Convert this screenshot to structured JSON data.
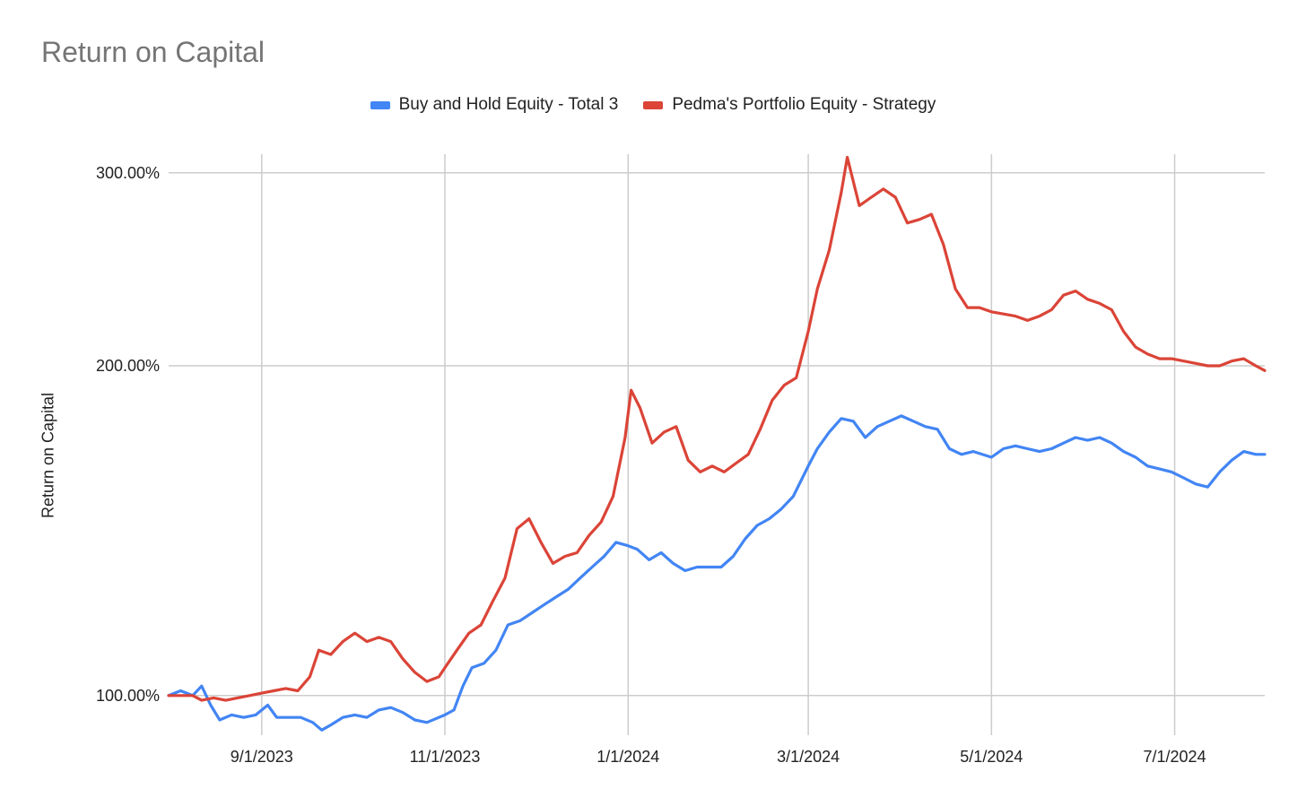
{
  "chart_data": {
    "type": "line",
    "title": "Return on Capital",
    "ylabel": "Return on Capital",
    "xlabel": "",
    "y_scale": "log",
    "ylim": [
      0.92,
      3.12
    ],
    "x_range": [
      "2023-08-01",
      "2024-07-31"
    ],
    "grid": true,
    "legend_position": "top",
    "x_ticks": [
      {
        "date": "2023-09-01",
        "label": "9/1/2023"
      },
      {
        "date": "2023-11-01",
        "label": "11/1/2023"
      },
      {
        "date": "2024-01-01",
        "label": "1/1/2024"
      },
      {
        "date": "2024-03-01",
        "label": "3/1/2024"
      },
      {
        "date": "2024-05-01",
        "label": "5/1/2024"
      },
      {
        "date": "2024-07-01",
        "label": "7/1/2024"
      }
    ],
    "y_ticks": [
      {
        "value": 1.0,
        "label": "100.00%"
      },
      {
        "value": 2.0,
        "label": "200.00%"
      },
      {
        "value": 3.0,
        "label": "300.00%"
      }
    ],
    "series": [
      {
        "name": "Buy and Hold Equity - Total 3",
        "color": "#4285f4",
        "points": [
          [
            "2023-08-01",
            1.0
          ],
          [
            "2023-08-05",
            1.01
          ],
          [
            "2023-08-09",
            1.0
          ],
          [
            "2023-08-12",
            1.02
          ],
          [
            "2023-08-15",
            0.98
          ],
          [
            "2023-08-18",
            0.95
          ],
          [
            "2023-08-22",
            0.96
          ],
          [
            "2023-08-26",
            0.955
          ],
          [
            "2023-08-30",
            0.96
          ],
          [
            "2023-09-03",
            0.98
          ],
          [
            "2023-09-06",
            0.955
          ],
          [
            "2023-09-10",
            0.955
          ],
          [
            "2023-09-14",
            0.955
          ],
          [
            "2023-09-18",
            0.945
          ],
          [
            "2023-09-21",
            0.93
          ],
          [
            "2023-09-24",
            0.94
          ],
          [
            "2023-09-28",
            0.955
          ],
          [
            "2023-10-02",
            0.96
          ],
          [
            "2023-10-06",
            0.955
          ],
          [
            "2023-10-10",
            0.97
          ],
          [
            "2023-10-14",
            0.975
          ],
          [
            "2023-10-18",
            0.965
          ],
          [
            "2023-10-22",
            0.95
          ],
          [
            "2023-10-26",
            0.945
          ],
          [
            "2023-10-30",
            0.955
          ],
          [
            "2023-11-01",
            0.96
          ],
          [
            "2023-11-04",
            0.97
          ],
          [
            "2023-11-07",
            1.02
          ],
          [
            "2023-11-10",
            1.06
          ],
          [
            "2023-11-14",
            1.07
          ],
          [
            "2023-11-18",
            1.1
          ],
          [
            "2023-11-22",
            1.16
          ],
          [
            "2023-11-26",
            1.17
          ],
          [
            "2023-11-30",
            1.19
          ],
          [
            "2023-12-04",
            1.21
          ],
          [
            "2023-12-08",
            1.23
          ],
          [
            "2023-12-12",
            1.25
          ],
          [
            "2023-12-16",
            1.28
          ],
          [
            "2023-12-20",
            1.31
          ],
          [
            "2023-12-24",
            1.34
          ],
          [
            "2023-12-28",
            1.38
          ],
          [
            "2024-01-01",
            1.37
          ],
          [
            "2024-01-04",
            1.36
          ],
          [
            "2024-01-08",
            1.33
          ],
          [
            "2024-01-12",
            1.35
          ],
          [
            "2024-01-16",
            1.32
          ],
          [
            "2024-01-20",
            1.3
          ],
          [
            "2024-01-24",
            1.31
          ],
          [
            "2024-01-28",
            1.31
          ],
          [
            "2024-02-01",
            1.31
          ],
          [
            "2024-02-05",
            1.34
          ],
          [
            "2024-02-09",
            1.39
          ],
          [
            "2024-02-13",
            1.43
          ],
          [
            "2024-02-17",
            1.45
          ],
          [
            "2024-02-21",
            1.48
          ],
          [
            "2024-02-25",
            1.52
          ],
          [
            "2024-03-01",
            1.62
          ],
          [
            "2024-03-04",
            1.68
          ],
          [
            "2024-03-08",
            1.74
          ],
          [
            "2024-03-12",
            1.79
          ],
          [
            "2024-03-16",
            1.78
          ],
          [
            "2024-03-20",
            1.72
          ],
          [
            "2024-03-24",
            1.76
          ],
          [
            "2024-03-28",
            1.78
          ],
          [
            "2024-04-01",
            1.8
          ],
          [
            "2024-04-05",
            1.78
          ],
          [
            "2024-04-09",
            1.76
          ],
          [
            "2024-04-13",
            1.75
          ],
          [
            "2024-04-17",
            1.68
          ],
          [
            "2024-04-21",
            1.66
          ],
          [
            "2024-04-25",
            1.67
          ],
          [
            "2024-05-01",
            1.65
          ],
          [
            "2024-05-05",
            1.68
          ],
          [
            "2024-05-09",
            1.69
          ],
          [
            "2024-05-13",
            1.68
          ],
          [
            "2024-05-17",
            1.67
          ],
          [
            "2024-05-21",
            1.68
          ],
          [
            "2024-05-25",
            1.7
          ],
          [
            "2024-05-29",
            1.72
          ],
          [
            "2024-06-02",
            1.71
          ],
          [
            "2024-06-06",
            1.72
          ],
          [
            "2024-06-10",
            1.7
          ],
          [
            "2024-06-14",
            1.67
          ],
          [
            "2024-06-18",
            1.65
          ],
          [
            "2024-06-22",
            1.62
          ],
          [
            "2024-06-26",
            1.61
          ],
          [
            "2024-06-30",
            1.6
          ],
          [
            "2024-07-04",
            1.58
          ],
          [
            "2024-07-08",
            1.56
          ],
          [
            "2024-07-12",
            1.55
          ],
          [
            "2024-07-16",
            1.6
          ],
          [
            "2024-07-20",
            1.64
          ],
          [
            "2024-07-24",
            1.67
          ],
          [
            "2024-07-28",
            1.66
          ],
          [
            "2024-07-31",
            1.66
          ]
        ]
      },
      {
        "name": "Pedma's Portfolio Equity - Strategy",
        "color": "#db4437",
        "points": [
          [
            "2023-08-01",
            1.0
          ],
          [
            "2023-08-05",
            1.0
          ],
          [
            "2023-08-09",
            1.0
          ],
          [
            "2023-08-12",
            0.99
          ],
          [
            "2023-08-16",
            0.995
          ],
          [
            "2023-08-20",
            0.99
          ],
          [
            "2023-08-24",
            0.995
          ],
          [
            "2023-08-28",
            1.0
          ],
          [
            "2023-09-01",
            1.005
          ],
          [
            "2023-09-05",
            1.01
          ],
          [
            "2023-09-09",
            1.015
          ],
          [
            "2023-09-13",
            1.01
          ],
          [
            "2023-09-17",
            1.04
          ],
          [
            "2023-09-20",
            1.1
          ],
          [
            "2023-09-24",
            1.09
          ],
          [
            "2023-09-28",
            1.12
          ],
          [
            "2023-10-02",
            1.14
          ],
          [
            "2023-10-06",
            1.12
          ],
          [
            "2023-10-10",
            1.13
          ],
          [
            "2023-10-14",
            1.12
          ],
          [
            "2023-10-18",
            1.08
          ],
          [
            "2023-10-22",
            1.05
          ],
          [
            "2023-10-26",
            1.03
          ],
          [
            "2023-10-30",
            1.04
          ],
          [
            "2023-11-01",
            1.06
          ],
          [
            "2023-11-05",
            1.1
          ],
          [
            "2023-11-09",
            1.14
          ],
          [
            "2023-11-13",
            1.16
          ],
          [
            "2023-11-17",
            1.22
          ],
          [
            "2023-11-21",
            1.28
          ],
          [
            "2023-11-25",
            1.42
          ],
          [
            "2023-11-29",
            1.45
          ],
          [
            "2023-12-03",
            1.38
          ],
          [
            "2023-12-07",
            1.32
          ],
          [
            "2023-12-11",
            1.34
          ],
          [
            "2023-12-15",
            1.35
          ],
          [
            "2023-12-19",
            1.4
          ],
          [
            "2023-12-23",
            1.44
          ],
          [
            "2023-12-27",
            1.52
          ],
          [
            "2023-12-31",
            1.72
          ],
          [
            "2024-01-02",
            1.9
          ],
          [
            "2024-01-05",
            1.83
          ],
          [
            "2024-01-09",
            1.7
          ],
          [
            "2024-01-13",
            1.74
          ],
          [
            "2024-01-17",
            1.76
          ],
          [
            "2024-01-21",
            1.64
          ],
          [
            "2024-01-25",
            1.6
          ],
          [
            "2024-01-29",
            1.62
          ],
          [
            "2024-02-02",
            1.6
          ],
          [
            "2024-02-06",
            1.63
          ],
          [
            "2024-02-10",
            1.66
          ],
          [
            "2024-02-14",
            1.75
          ],
          [
            "2024-02-18",
            1.86
          ],
          [
            "2024-02-22",
            1.92
          ],
          [
            "2024-02-26",
            1.95
          ],
          [
            "2024-03-01",
            2.15
          ],
          [
            "2024-03-04",
            2.35
          ],
          [
            "2024-03-08",
            2.55
          ],
          [
            "2024-03-12",
            2.88
          ],
          [
            "2024-03-14",
            3.1
          ],
          [
            "2024-03-18",
            2.8
          ],
          [
            "2024-03-22",
            2.85
          ],
          [
            "2024-03-26",
            2.9
          ],
          [
            "2024-03-30",
            2.85
          ],
          [
            "2024-04-03",
            2.7
          ],
          [
            "2024-04-07",
            2.72
          ],
          [
            "2024-04-11",
            2.75
          ],
          [
            "2024-04-15",
            2.58
          ],
          [
            "2024-04-19",
            2.35
          ],
          [
            "2024-04-23",
            2.26
          ],
          [
            "2024-04-27",
            2.26
          ],
          [
            "2024-05-01",
            2.24
          ],
          [
            "2024-05-05",
            2.23
          ],
          [
            "2024-05-09",
            2.22
          ],
          [
            "2024-05-13",
            2.2
          ],
          [
            "2024-05-17",
            2.22
          ],
          [
            "2024-05-21",
            2.25
          ],
          [
            "2024-05-25",
            2.32
          ],
          [
            "2024-05-29",
            2.34
          ],
          [
            "2024-06-02",
            2.3
          ],
          [
            "2024-06-06",
            2.28
          ],
          [
            "2024-06-10",
            2.25
          ],
          [
            "2024-06-14",
            2.15
          ],
          [
            "2024-06-18",
            2.08
          ],
          [
            "2024-06-22",
            2.05
          ],
          [
            "2024-06-26",
            2.03
          ],
          [
            "2024-06-30",
            2.03
          ],
          [
            "2024-07-04",
            2.02
          ],
          [
            "2024-07-08",
            2.01
          ],
          [
            "2024-07-12",
            2.0
          ],
          [
            "2024-07-16",
            2.0
          ],
          [
            "2024-07-20",
            2.02
          ],
          [
            "2024-07-24",
            2.03
          ],
          [
            "2024-07-28",
            2.0
          ],
          [
            "2024-07-31",
            1.98
          ]
        ]
      }
    ]
  }
}
